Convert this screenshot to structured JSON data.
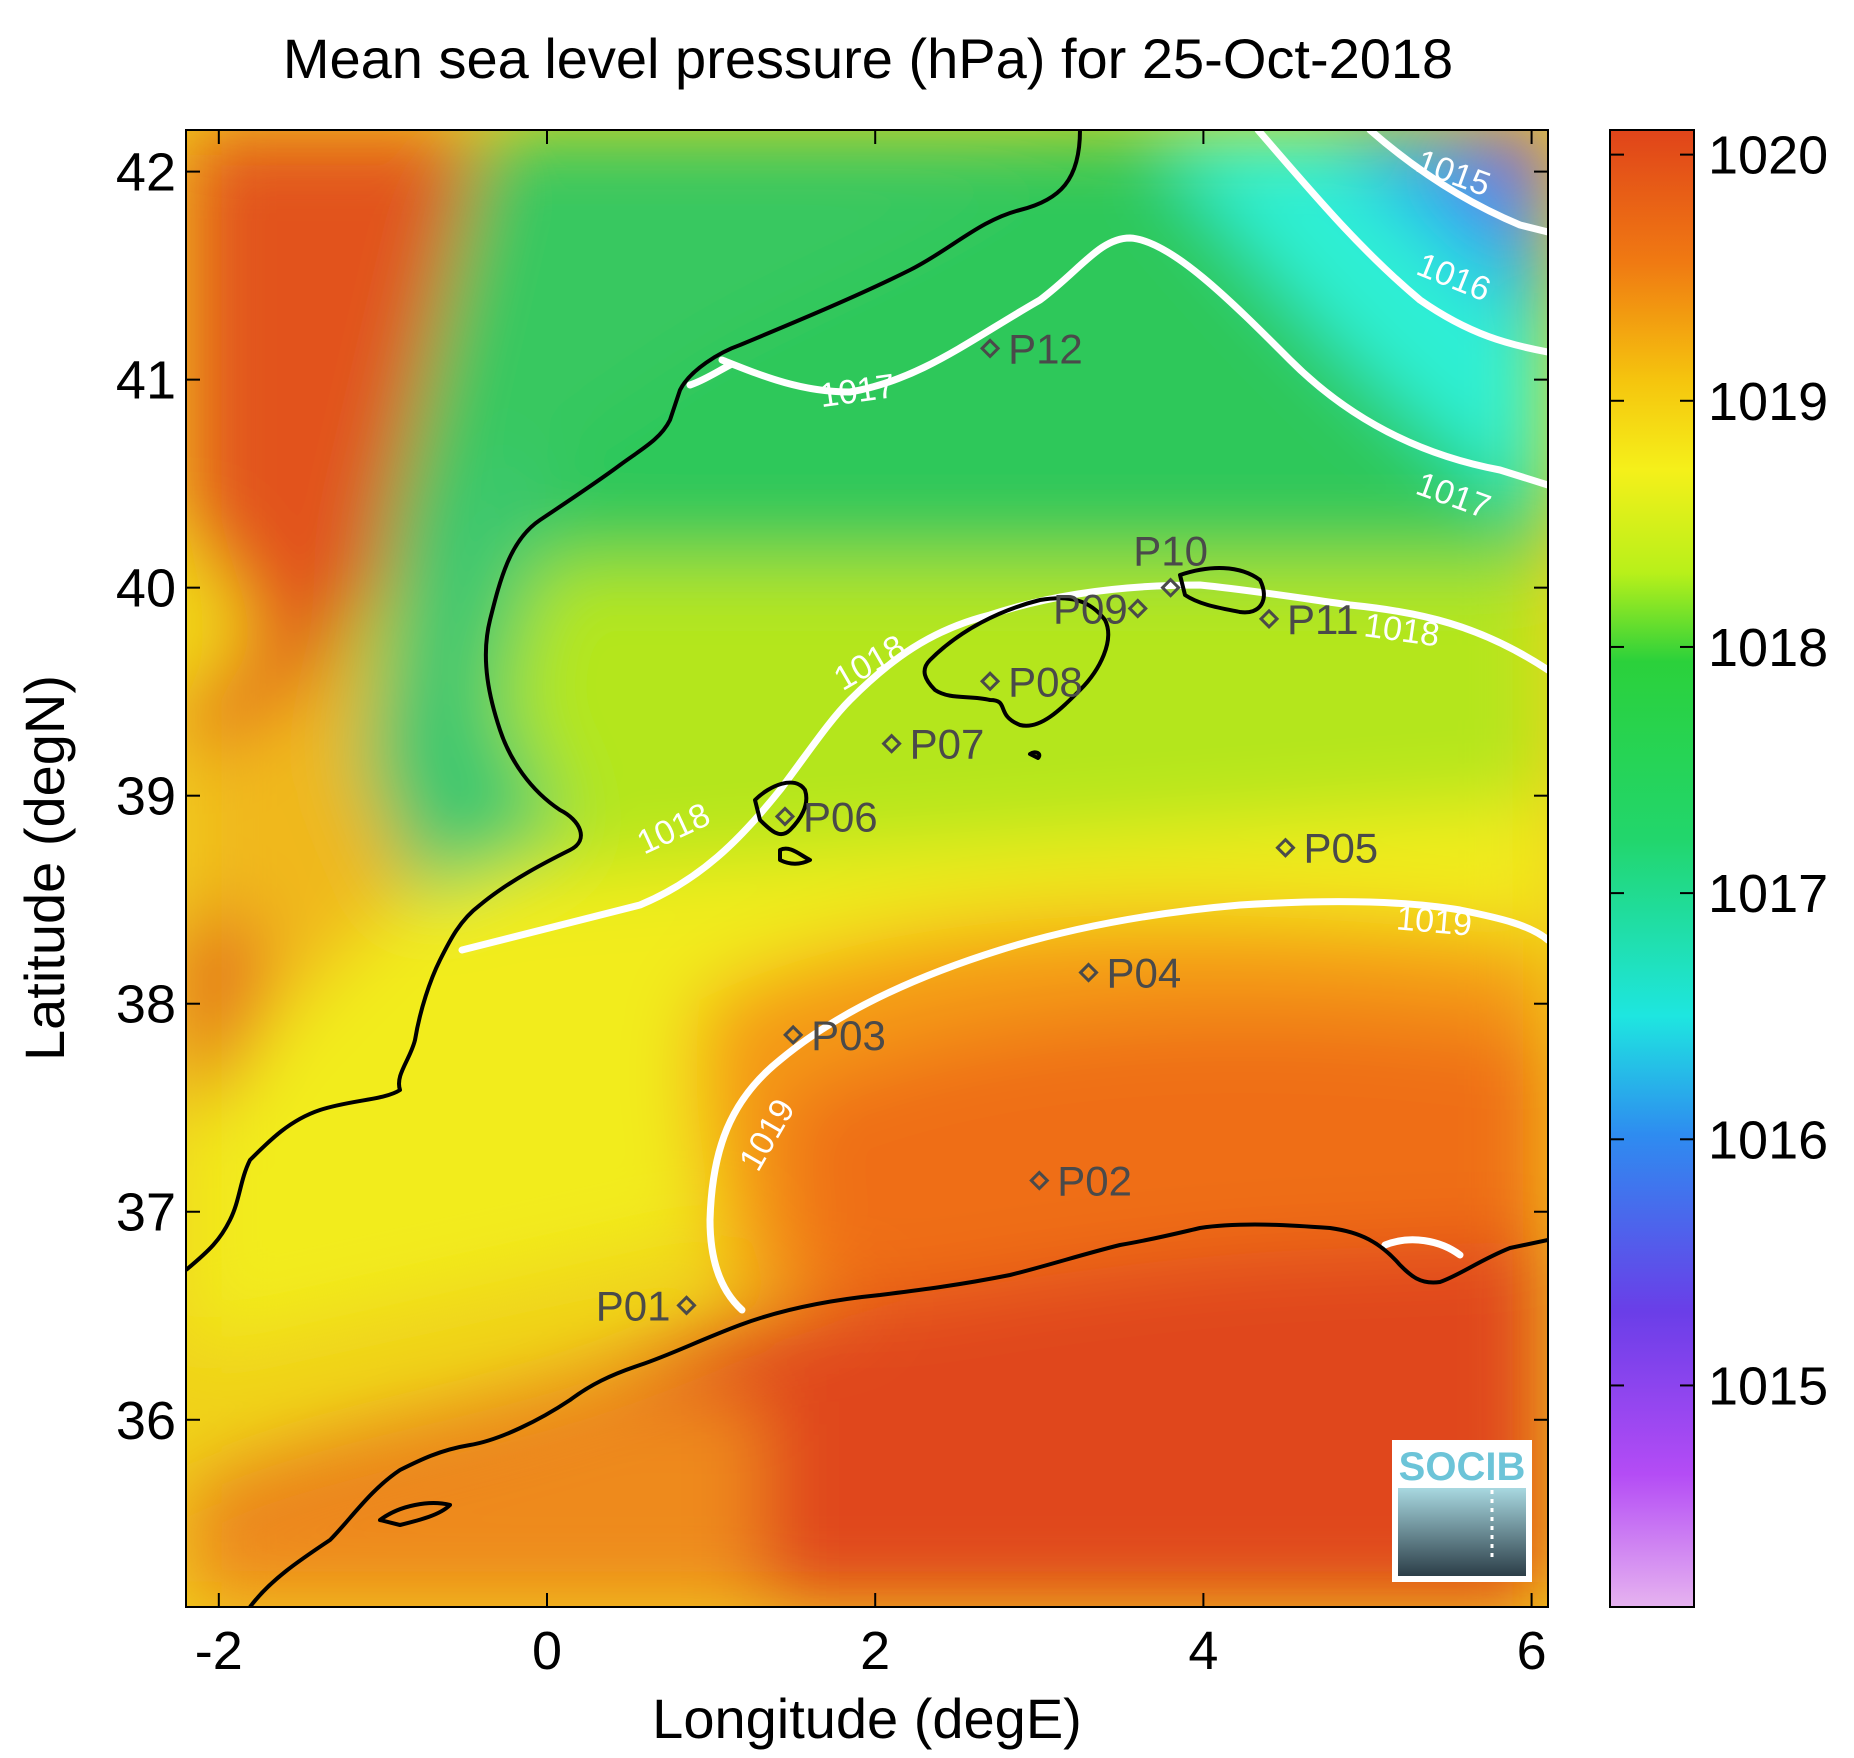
{
  "title": "Mean sea level pressure (hPa) for 25-Oct-2018",
  "xlabel": "Longitude (degE)",
  "ylabel": "Latitude (degN)",
  "logo": "SOCIB",
  "chart_data": {
    "type": "heatmap",
    "title": "Mean sea level pressure (hPa) for 25-Oct-2018",
    "xlabel": "Longitude (degE)",
    "ylabel": "Latitude (degN)",
    "xlim": [
      -2.2,
      6.1
    ],
    "ylim": [
      35.1,
      42.2
    ],
    "xticks": [
      -2,
      0,
      2,
      4,
      6
    ],
    "yticks": [
      36,
      37,
      38,
      39,
      40,
      41,
      42
    ],
    "colorbar": {
      "ticks": [
        1015,
        1016,
        1017,
        1018,
        1019,
        1020
      ],
      "range": [
        1014.1,
        1020.1
      ],
      "colormap": [
        "#e6b3f0",
        "#b44cf5",
        "#6a3ee8",
        "#2e8cf0",
        "#1ee6e0",
        "#22d66c",
        "#2bd13b",
        "#b8f01a",
        "#f5f01a",
        "#f5c50e",
        "#f07a12",
        "#e0441a"
      ]
    },
    "contours": [
      {
        "level": 1015,
        "label": "1015",
        "path": [
          [
            5.5,
            42.2
          ],
          [
            5.8,
            42.0
          ],
          [
            6.1,
            41.9
          ]
        ]
      },
      {
        "level": 1016,
        "label": "1016",
        "path": [
          [
            4.3,
            42.2
          ],
          [
            4.8,
            41.7
          ],
          [
            5.3,
            41.3
          ],
          [
            6.1,
            41.1
          ]
        ]
      },
      {
        "level": 1017,
        "label": "1017",
        "path": [
          [
            1.2,
            40.95
          ],
          [
            1.8,
            40.95
          ],
          [
            2.5,
            41.2
          ],
          [
            3.0,
            41.5
          ],
          [
            3.4,
            41.65
          ],
          [
            3.8,
            41.5
          ],
          [
            4.3,
            41.1
          ],
          [
            4.8,
            40.7
          ],
          [
            5.4,
            40.55
          ],
          [
            6.1,
            40.4
          ]
        ]
      },
      {
        "level": 1018,
        "label": "1018",
        "path": [
          [
            -0.5,
            38.2
          ],
          [
            0.2,
            38.4
          ],
          [
            0.8,
            38.6
          ],
          [
            1.3,
            39.0
          ],
          [
            1.7,
            39.3
          ],
          [
            2.2,
            39.6
          ],
          [
            2.8,
            39.85
          ],
          [
            3.6,
            40.0
          ],
          [
            4.5,
            39.9
          ],
          [
            5.3,
            39.75
          ],
          [
            6.1,
            39.55
          ]
        ]
      },
      {
        "level": 1019,
        "label": "1019",
        "path": [
          [
            1.0,
            36.55
          ],
          [
            1.0,
            36.9
          ],
          [
            1.1,
            37.3
          ],
          [
            1.5,
            37.7
          ],
          [
            2.0,
            38.0
          ],
          [
            2.6,
            38.3
          ],
          [
            3.4,
            38.5
          ],
          [
            4.5,
            38.5
          ],
          [
            5.5,
            38.4
          ],
          [
            6.1,
            38.3
          ]
        ]
      }
    ],
    "points": [
      {
        "name": "P01",
        "lon": 0.85,
        "lat": 36.55
      },
      {
        "name": "P02",
        "lon": 3.0,
        "lat": 37.15
      },
      {
        "name": "P03",
        "lon": 1.5,
        "lat": 37.85
      },
      {
        "name": "P04",
        "lon": 3.3,
        "lat": 38.15
      },
      {
        "name": "P05",
        "lon": 4.5,
        "lat": 38.75
      },
      {
        "name": "P06",
        "lon": 1.45,
        "lat": 38.9
      },
      {
        "name": "P07",
        "lon": 2.1,
        "lat": 39.25
      },
      {
        "name": "P08",
        "lon": 2.7,
        "lat": 39.55
      },
      {
        "name": "P09",
        "lon": 3.6,
        "lat": 39.9
      },
      {
        "name": "P10",
        "lon": 3.8,
        "lat": 40.0
      },
      {
        "name": "P11",
        "lon": 4.4,
        "lat": 39.85
      },
      {
        "name": "P12",
        "lon": 2.7,
        "lat": 41.15
      }
    ]
  }
}
